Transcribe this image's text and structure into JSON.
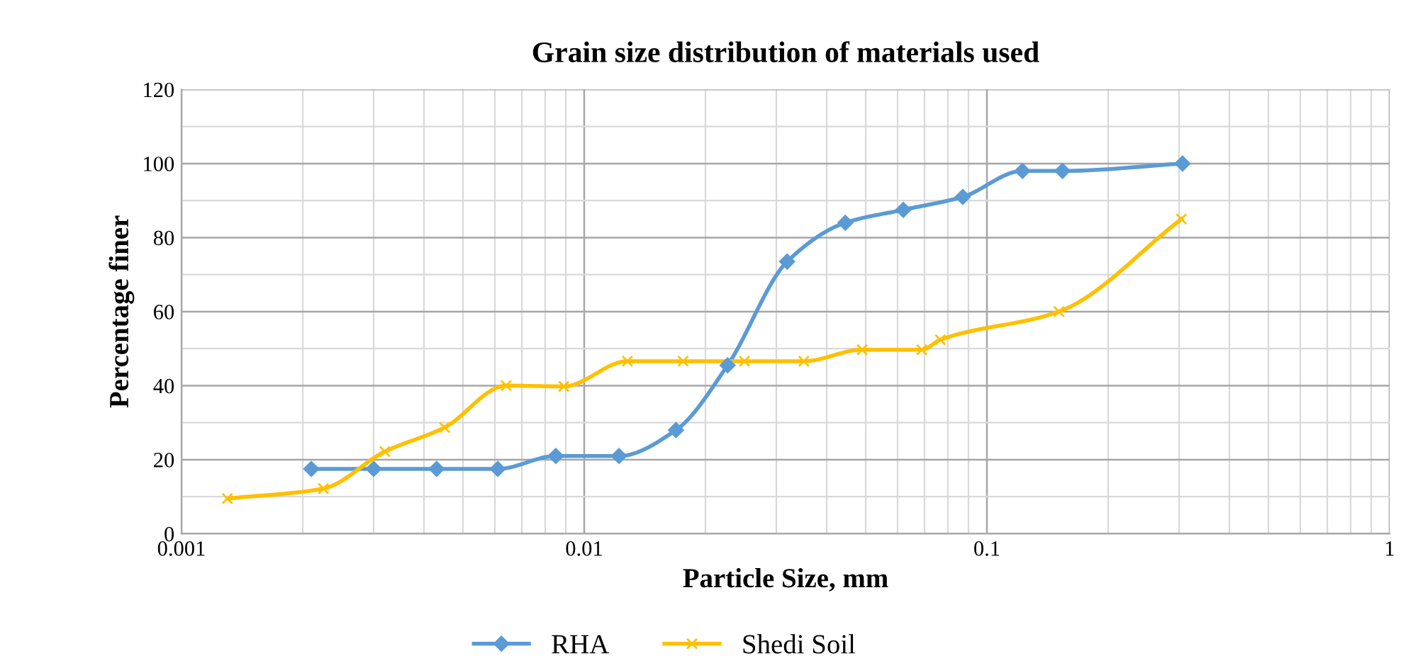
{
  "chart_data": {
    "type": "line",
    "title": "Grain size distribution of materials used",
    "xlabel": "Particle Size, mm",
    "ylabel": "Percentage finer",
    "log": "x",
    "xlim": [
      0.001,
      1
    ],
    "xticks": [
      0.001,
      0.01,
      0.1,
      1
    ],
    "ylim": [
      0,
      120
    ],
    "yticks": [
      0,
      20,
      40,
      60,
      80,
      100,
      120
    ],
    "grid": true,
    "legend": "bottom",
    "series": [
      {
        "name": "RHA",
        "color": "#5b9bd5",
        "marker": "diamond",
        "x": [
          0.0021,
          0.003,
          0.0043,
          0.0061,
          0.0085,
          0.0122,
          0.0169,
          0.0227,
          0.0319,
          0.0445,
          0.062,
          0.0871,
          0.1225,
          0.154,
          0.306
        ],
        "values": [
          17.5,
          17.5,
          17.5,
          17.5,
          21,
          21,
          28,
          45.5,
          73.5,
          84,
          87.5,
          91,
          98,
          98,
          100
        ]
      },
      {
        "name": "Shedi Soil",
        "color": "#ffc000",
        "marker": "cross",
        "x": [
          0.0013,
          0.00225,
          0.0032,
          0.0045,
          0.0064,
          0.0089,
          0.0128,
          0.0176,
          0.025,
          0.0351,
          0.049,
          0.0689,
          0.0766,
          0.151,
          0.304
        ],
        "values": [
          9.5,
          12.2,
          22.2,
          28.7,
          40,
          39.8,
          46.6,
          46.6,
          46.6,
          46.6,
          49.7,
          49.7,
          52.4,
          60,
          85
        ]
      }
    ]
  }
}
